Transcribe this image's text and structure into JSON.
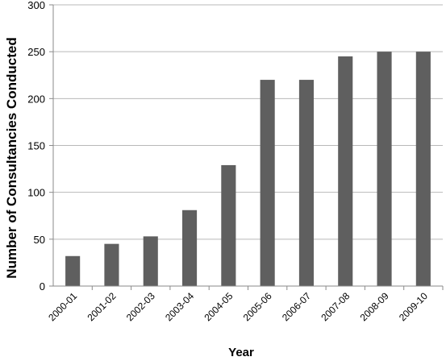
{
  "chart_data": {
    "type": "bar",
    "title": "",
    "xlabel": "Year",
    "ylabel": "Number of Consultancies Conducted",
    "categories": [
      "2000-01",
      "2001-02",
      "2002-03",
      "2003-04",
      "2004-05",
      "2005-06",
      "2006-07",
      "2007-08",
      "2008-09",
      "2009-10"
    ],
    "values": [
      32,
      45,
      53,
      81,
      129,
      220,
      220,
      245,
      250,
      250
    ],
    "ylim": [
      0,
      300
    ],
    "yticks": [
      "0",
      "50",
      "100",
      "150",
      "200",
      "250",
      "300"
    ],
    "grid": true,
    "legend": "none",
    "colors": {
      "bar": "#5f5f5f",
      "grid": "#b9b9b9",
      "axis": "#8a8a8a"
    }
  }
}
